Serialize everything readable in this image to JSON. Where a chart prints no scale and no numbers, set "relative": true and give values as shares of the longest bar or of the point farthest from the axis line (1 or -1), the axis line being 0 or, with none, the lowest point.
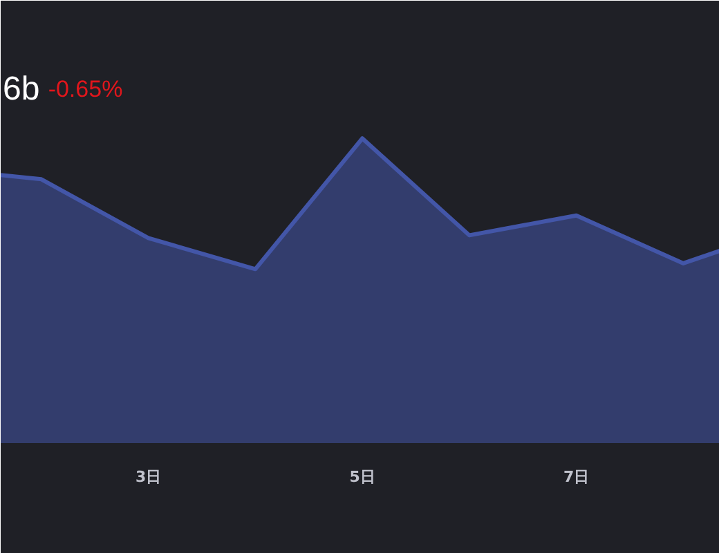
{
  "chart_data": {
    "type": "area",
    "title": "6b",
    "annotations": [
      "-0.65%"
    ],
    "relative": true,
    "x": [
      1.62,
      2,
      3,
      4,
      5,
      6,
      7,
      8,
      8.34
    ],
    "xlim": [
      1.62,
      8.34
    ],
    "xticks": [
      {
        "value": 3,
        "label": "3日"
      },
      {
        "value": 5,
        "label": "5日"
      },
      {
        "value": 7,
        "label": "7日"
      }
    ],
    "series": [
      {
        "color": "#4356a8",
        "values": [
          0.88,
          0.866,
          0.673,
          0.571,
          1,
          0.682,
          0.747,
          0.59,
          0.631
        ]
      }
    ],
    "grid": false
  }
}
